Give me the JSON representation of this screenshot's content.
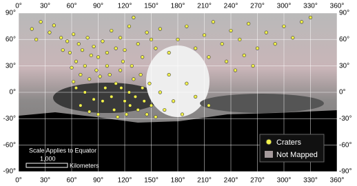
{
  "chart_data": {
    "type": "scatter",
    "xlim": [
      0,
      360
    ],
    "ylim": [
      -90,
      90
    ],
    "xticks": [
      {
        "value": 0,
        "label": "0°"
      },
      {
        "value": 30,
        "label": "30°"
      },
      {
        "value": 60,
        "label": "60°"
      },
      {
        "value": 90,
        "label": "90°"
      },
      {
        "value": 120,
        "label": "120°"
      },
      {
        "value": 150,
        "label": "150°"
      },
      {
        "value": 180,
        "label": "180°"
      },
      {
        "value": 210,
        "label": "210°"
      },
      {
        "value": 240,
        "label": "240°"
      },
      {
        "value": 270,
        "label": "270°"
      },
      {
        "value": 300,
        "label": "300°"
      },
      {
        "value": 330,
        "label": "330°"
      },
      {
        "value": 360,
        "label": "360°"
      }
    ],
    "yticks": [
      {
        "value": 90,
        "label": "90°"
      },
      {
        "value": 60,
        "label": "60°"
      },
      {
        "value": 30,
        "label": "30°"
      },
      {
        "value": 0,
        "label": "0°"
      },
      {
        "value": -30,
        "label": "-30°"
      },
      {
        "value": -60,
        "label": "-60°"
      },
      {
        "value": -90,
        "label": "-90°"
      }
    ],
    "grid": true,
    "series": [
      {
        "name": "Craters",
        "color": "#f2f24a",
        "x": [
          48,
          55,
          62,
          68,
          72,
          78,
          85,
          90,
          95,
          100,
          58,
          65,
          75,
          82,
          88,
          50,
          60,
          70,
          80,
          92,
          98,
          105,
          110,
          115,
          120,
          125,
          130,
          135,
          140,
          145,
          150,
          108,
          118,
          128,
          138,
          112,
          122,
          132,
          142,
          148,
          100,
          95,
          103,
          116,
          126,
          105,
          115,
          125,
          135,
          145,
          155,
          110,
          120,
          140,
          150,
          160,
          130,
          65,
          75,
          85,
          70,
          80,
          90,
          62,
          15,
          25,
          35,
          40,
          20,
          170,
          180,
          190,
          200,
          210,
          220,
          230,
          240,
          250,
          260,
          270,
          280,
          290,
          300,
          310,
          320,
          330,
          215,
          235,
          255,
          265,
          245,
          155,
          165,
          175,
          185,
          200,
          215,
          160,
          170,
          190
        ],
        "y": [
          62,
          58,
          66,
          55,
          48,
          62,
          52,
          40,
          58,
          45,
          45,
          35,
          30,
          42,
          25,
          48,
          28,
          20,
          15,
          18,
          5,
          -5,
          10,
          25,
          -10,
          0,
          15,
          -20,
          5,
          -25,
          -15,
          -20,
          35,
          30,
          20,
          -28,
          -25,
          -5,
          -10,
          10,
          30,
          -10,
          20,
          5,
          -15,
          70,
          62,
          75,
          55,
          68,
          50,
          50,
          48,
          40,
          60,
          72,
          85,
          5,
          0,
          -8,
          -15,
          -22,
          -25,
          12,
          72,
          80,
          68,
          76,
          60,
          45,
          60,
          75,
          50,
          65,
          80,
          55,
          70,
          60,
          78,
          50,
          68,
          55,
          75,
          62,
          80,
          85,
          40,
          35,
          42,
          30,
          25,
          -28,
          -20,
          -10,
          -25,
          -5,
          -15,
          0,
          20,
          10
        ]
      }
    ],
    "not_mapped_label": "Not Mapped",
    "scale": {
      "title": "Scale Applies to Equator",
      "distance": "1,000",
      "unit": "Kilometers"
    }
  }
}
